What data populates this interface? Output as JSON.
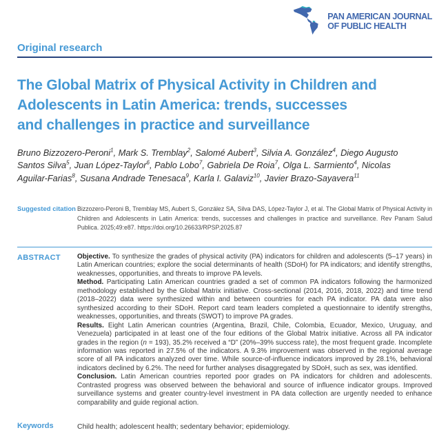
{
  "journal": {
    "logo_name": "Pan American Journal\nof Public Health",
    "logo_icon": "americas-map-icon"
  },
  "article": {
    "section_label": "Original research",
    "title": "The Global Matrix of Physical Activity in Children and\nAdolescents in Latin America: trends, successes\nand challenges in practice and surveillance",
    "authors": [
      {
        "name": "Bruno Bizzozero-Peroni",
        "affiliation": "1"
      },
      {
        "name": "Mark S. Tremblay",
        "affiliation": "2"
      },
      {
        "name": "Salomé Aubert",
        "affiliation": "3"
      },
      {
        "name": "Silvia A. González",
        "affiliation": "4"
      },
      {
        "name": "Diego Augusto Santos Silva",
        "affiliation": "5"
      },
      {
        "name": "Juan López-Taylor",
        "affiliation": "6"
      },
      {
        "name": "Pablo Lobo",
        "affiliation": "7"
      },
      {
        "name": "Gabriela De Roia",
        "affiliation": "7"
      },
      {
        "name": "Olga L. Sarmiento",
        "affiliation": "4"
      },
      {
        "name": "Nicolas Aguilar-Farias",
        "affiliation": "8"
      },
      {
        "name": "Susana Andrade Tenesaca",
        "affiliation": "9"
      },
      {
        "name": "Karla I. Galaviz",
        "affiliation": "10"
      },
      {
        "name": "Javier Brazo-Sayavera",
        "affiliation": "11"
      }
    ]
  },
  "suggested_citation": {
    "label": "Suggested citation",
    "text": "Bizzozero-Peroni B, Tremblay MS, Aubert S, González SA, Silva DAS, López-Taylor J, et al. The Global Matrix of Physical Activity in Children and Adolescents in Latin America: trends, successes and challenges in practice and surveillance. Rev Panam Salud Publica. 2025;49:e87. https://doi.org/10.26633/RPSP.2025.87"
  },
  "abstract": {
    "label": "ABSTRACT",
    "paragraphs": [
      {
        "parts": [
          {
            "b": "Objective."
          },
          {
            "t": " To synthesize the grades of physical activity (PA) indicators for children and adolescents (5–17 years) in Latin American countries; explore the social determinants of health (SDoH) for PA indicators; and identify strengths, weaknesses, opportunities, and threats to improve PA levels."
          }
        ]
      },
      {
        "parts": [
          {
            "b": "Method."
          },
          {
            "t": " Participating Latin American countries graded a set of common PA indicators following the harmonized methodology established by the Global Matrix initiative. Cross-sectional (2014, 2016, 2018, 2022) and time trend (2018–2022) data were synthesized within and between countries for each PA indicator. PA data were also synthesized according to their SDoH. Report card team leaders completed a questionnaire to identify strengths, weaknesses, opportunities, and threats (SWOT) to improve PA grades."
          }
        ]
      },
      {
        "parts": [
          {
            "b": "Results."
          },
          {
            "t": " Eight Latin American countries (Argentina, Brazil, Chile, Colombia, Ecuador, Mexico, Uruguay, and Venezuela) participated in at least one of the four editions of the Global Matrix initiative. Across all PA indicator grades in the region ("
          },
          {
            "i": "n"
          },
          {
            "t": " = 193), 35.2% received a “D” (20%–39% success rate), the most frequent grade. Incomplete information was reported in 27.5% of the indicators. A 9.3% improvement was observed in the regional average score of all PA indicators analyzed over time. While source-of-influence indicators improved by 28.1%, behavioral indicators declined by 6.2%. The need for further analyses disaggregated by SDoH, such as sex, was identified."
          }
        ]
      },
      {
        "parts": [
          {
            "b": "Conclusion."
          },
          {
            "t": " Latin American countries reported poor grades on PA indicators for children and adolescents. Contrasted progress was observed between the behavioral and source of influence indicator groups. Improved surveillance systems and greater country-level investment in PA data collection are urgently needed to enhance comparability and guide regional action."
          }
        ]
      }
    ]
  },
  "keywords": {
    "label": "Keywords",
    "text": "Child health; adolescent health; sedentary behavior; epidemiology."
  },
  "colors": {
    "accent_blue": "#4599d5",
    "navy_rule": "#27437d",
    "logo_blue": "#4168ae",
    "logo_teal": "#2fb0c0",
    "body_text": "#3b3b3b"
  }
}
